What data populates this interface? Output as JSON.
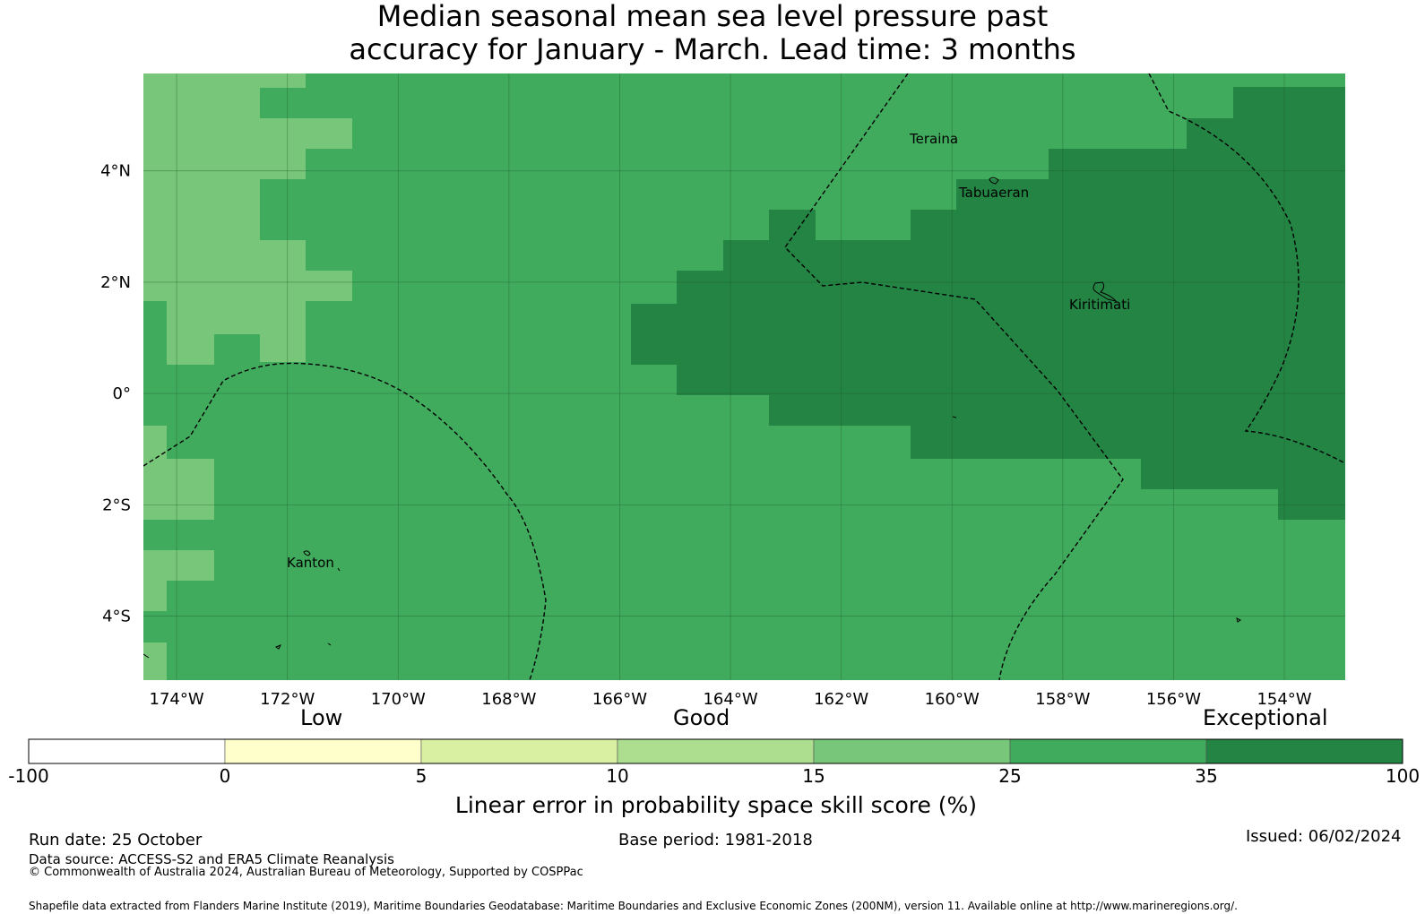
{
  "title": {
    "line1": "Median seasonal mean sea level pressure past",
    "line2": "accuracy for January - March. Lead time: 3 months"
  },
  "map": {
    "projection": "lat-lon",
    "lon_range": [
      -174.6,
      -152.9
    ],
    "lat_range": [
      -5.15,
      5.75
    ],
    "lon_ticks": [
      "174°W",
      "172°W",
      "170°W",
      "168°W",
      "166°W",
      "164°W",
      "162°W",
      "160°W",
      "158°W",
      "156°W",
      "154°W"
    ],
    "lat_ticks": [
      "4°N",
      "2°N",
      "0°",
      "2°S",
      "4°S"
    ],
    "gridlines": true,
    "places": [
      "Teraina",
      "Tabuaeran",
      "Kiritimati",
      "Kanton"
    ]
  },
  "colorbar": {
    "categories": [
      "Low",
      "Good",
      "Exceptional"
    ],
    "ticks": [
      "-100",
      "0",
      "5",
      "10",
      "15",
      "25",
      "35",
      "100"
    ],
    "colors": [
      "#ffffff",
      "#ffffcc",
      "#d9f0a3",
      "#addd8e",
      "#78c679",
      "#41ab5d",
      "#238443"
    ],
    "label": "Linear error in probability space skill score (%)"
  },
  "footer": {
    "run_date": "Run date: 25 October",
    "base_period": "Base period: 1981-2018",
    "issued": "Issued: 06/02/2024",
    "data_source": "Data source: ACCESS-S2 and ERA5 Climate Reanalysis",
    "copyright": "© Commonwealth of Australia 2024, Australian Bureau of Meteorology, Supported by COSPPac",
    "shapefile": "Shapefile data extracted from Flanders Marine Institute (2019), Maritime Boundaries Geodatabase: Maritime Boundaries and Exclusive Economic Zones (200NM), version 11. Available online at http://www.marineregions.org/."
  }
}
